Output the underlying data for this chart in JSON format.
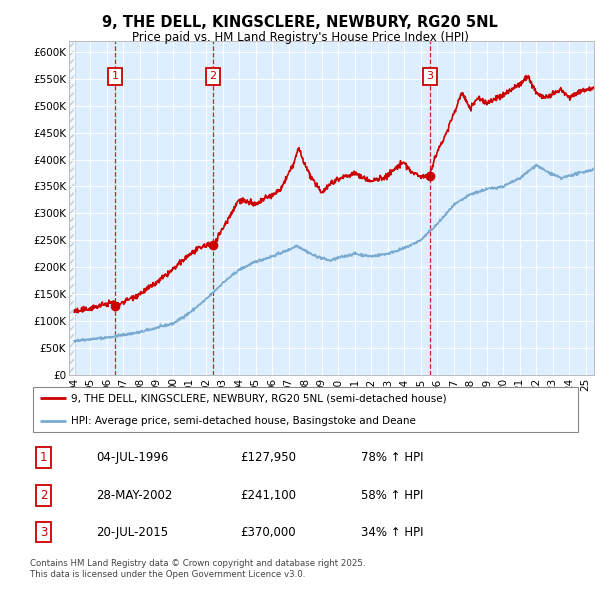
{
  "title": "9, THE DELL, KINGSCLERE, NEWBURY, RG20 5NL",
  "subtitle": "Price paid vs. HM Land Registry's House Price Index (HPI)",
  "legend_line1": "9, THE DELL, KINGSCLERE, NEWBURY, RG20 5NL (semi-detached house)",
  "legend_line2": "HPI: Average price, semi-detached house, Basingstoke and Deane",
  "footnote": "Contains HM Land Registry data © Crown copyright and database right 2025.\nThis data is licensed under the Open Government Licence v3.0.",
  "sales": [
    {
      "label": "1",
      "date": "04-JUL-1996",
      "price": 127950,
      "hpi_pct": "78% ↑ HPI",
      "year": 1996.5
    },
    {
      "label": "2",
      "date": "28-MAY-2002",
      "price": 241100,
      "hpi_pct": "58% ↑ HPI",
      "year": 2002.4
    },
    {
      "label": "3",
      "date": "20-JUL-2015",
      "price": 370000,
      "hpi_pct": "34% ↑ HPI",
      "year": 2015.55
    }
  ],
  "red_color": "#cc0000",
  "blue_color": "#7aaad0",
  "background_chart": "#ddeeff",
  "grid_color": "#ffffff",
  "ylim": [
    0,
    620000
  ],
  "xlim_start": 1993.7,
  "xlim_end": 2025.5,
  "xticks": [
    1994,
    1995,
    1996,
    1997,
    1998,
    1999,
    2000,
    2001,
    2002,
    2003,
    2004,
    2005,
    2006,
    2007,
    2008,
    2009,
    2010,
    2011,
    2012,
    2013,
    2014,
    2015,
    2016,
    2017,
    2018,
    2019,
    2020,
    2021,
    2022,
    2023,
    2024,
    2025
  ],
  "yticks": [
    0,
    50000,
    100000,
    150000,
    200000,
    250000,
    300000,
    350000,
    400000,
    450000,
    500000,
    550000,
    600000
  ],
  "ytick_labels": [
    "£0",
    "£50K",
    "£100K",
    "£150K",
    "£200K",
    "£250K",
    "£300K",
    "£350K",
    "£400K",
    "£450K",
    "£500K",
    "£550K",
    "£600K"
  ]
}
